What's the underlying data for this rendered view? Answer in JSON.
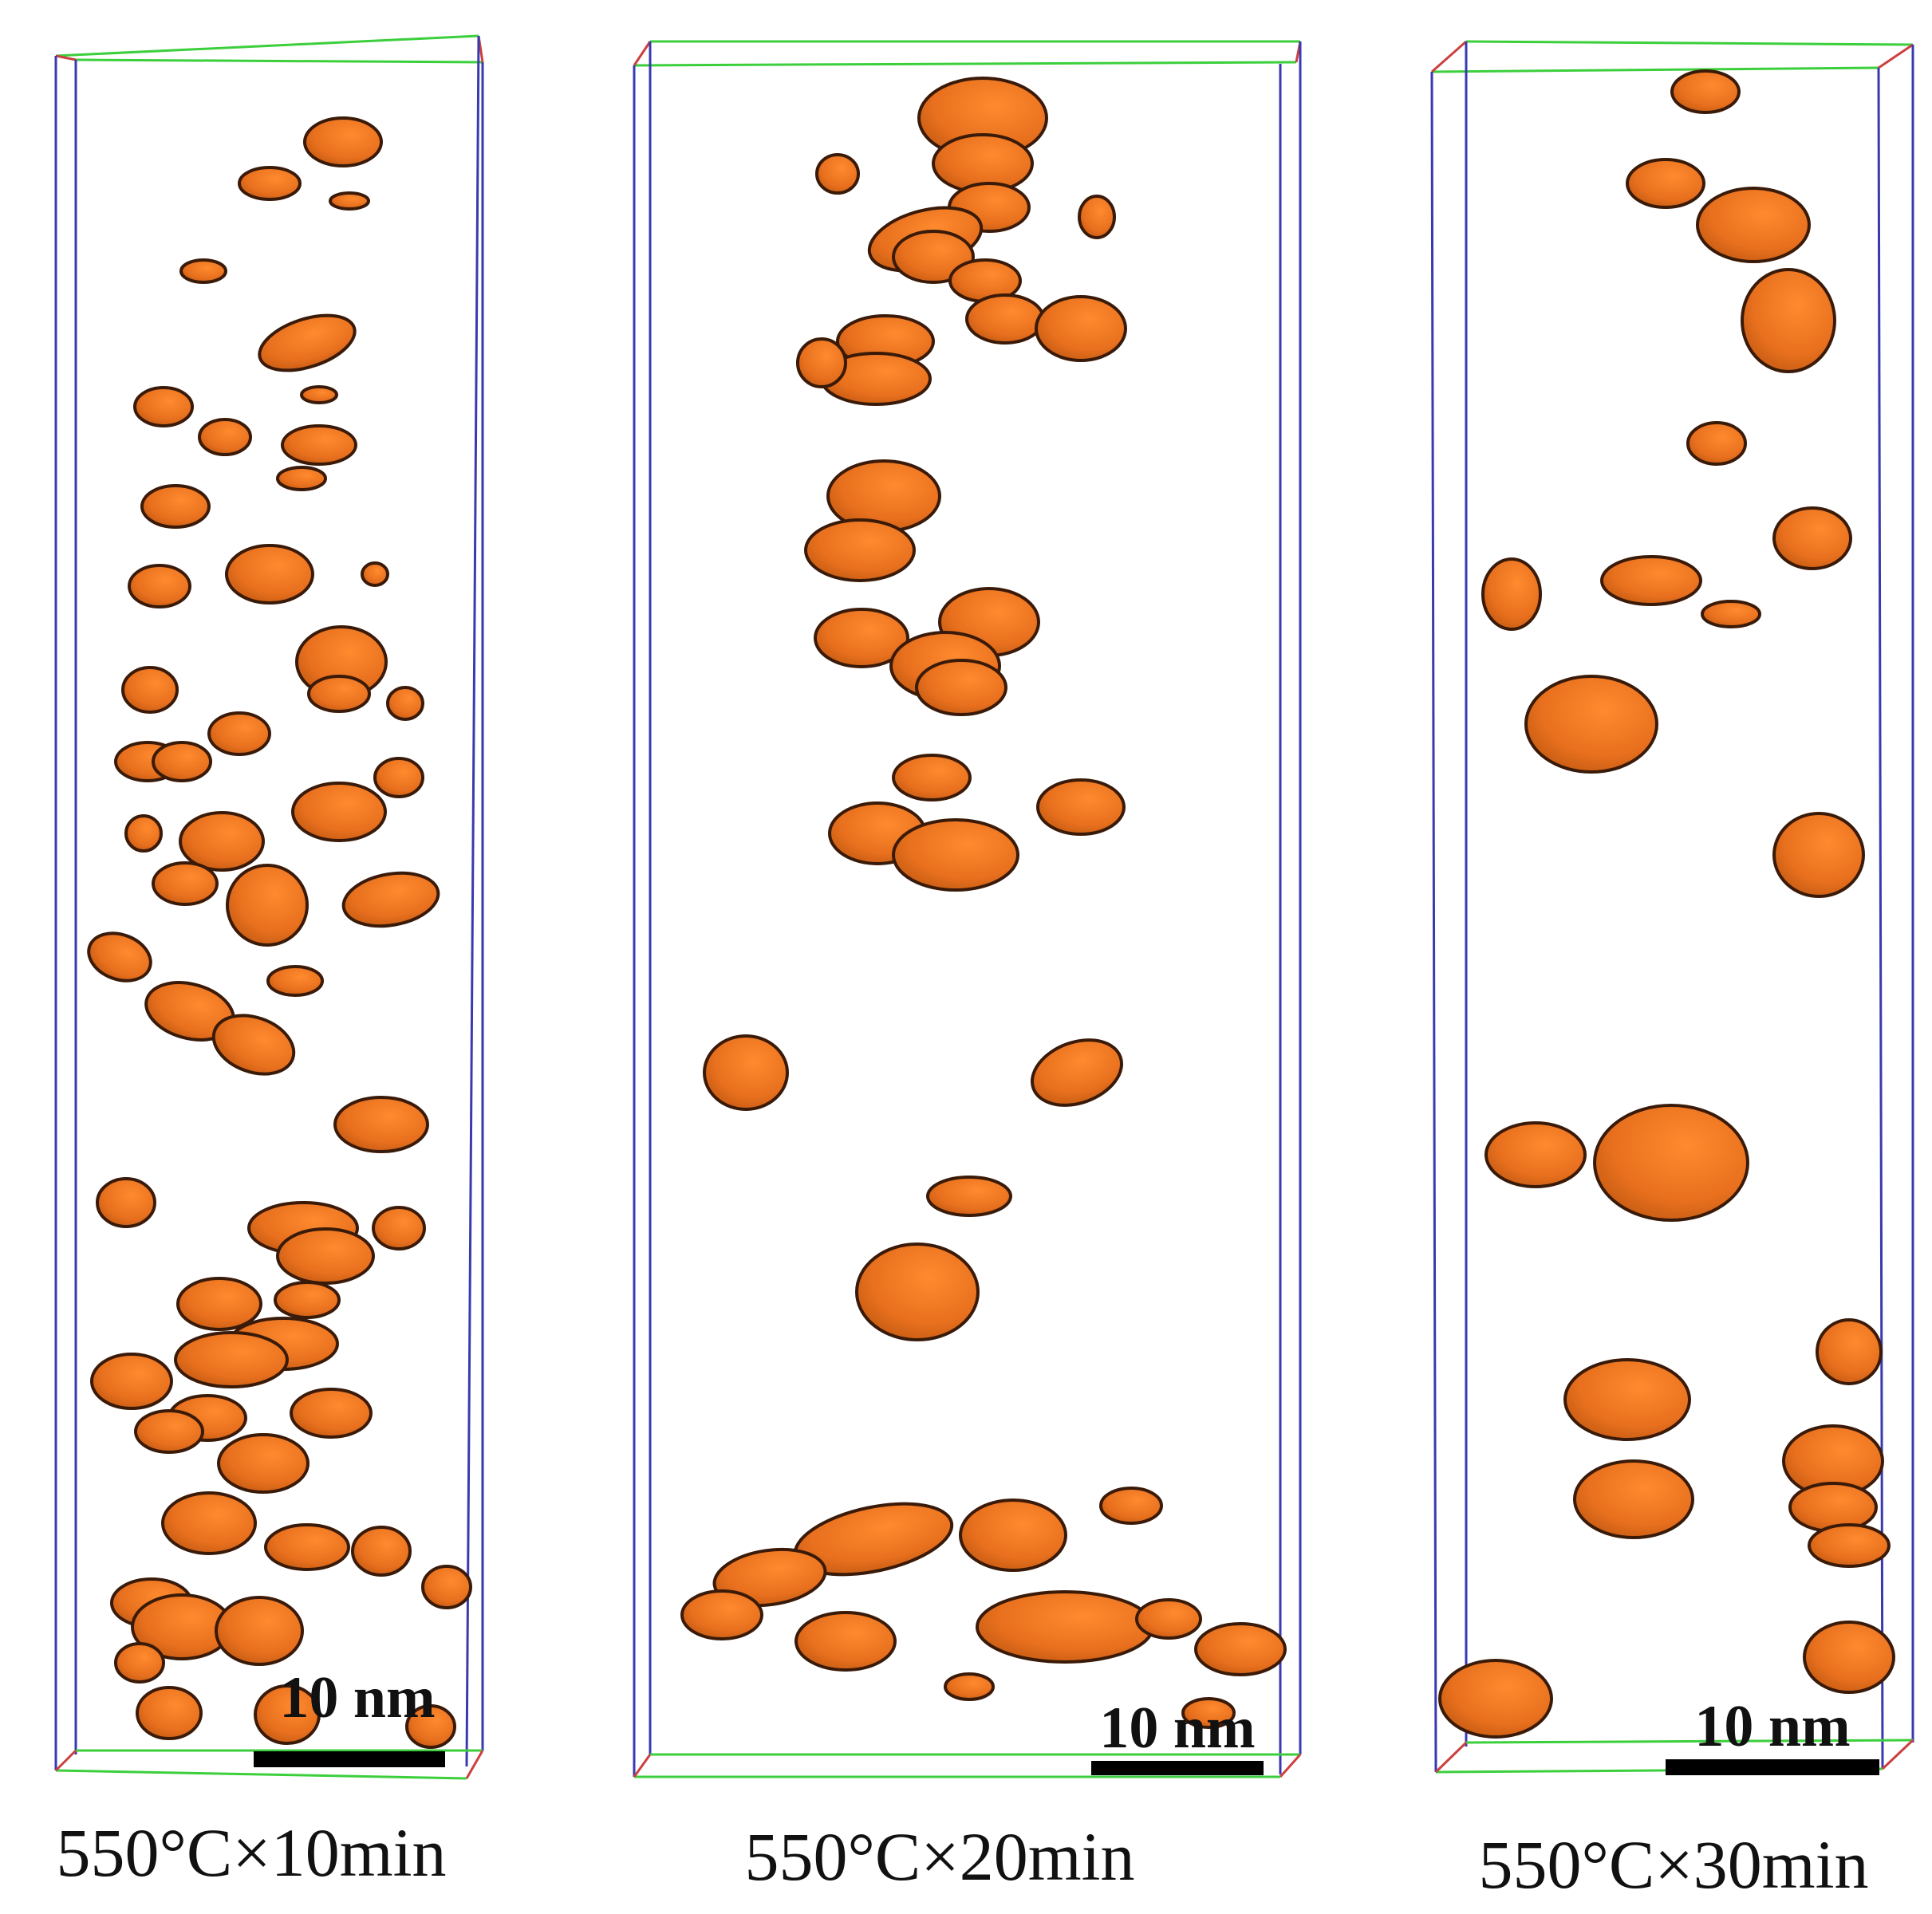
{
  "colors": {
    "precipitate_fill": "#e8701e",
    "precipitate_highlight": "#ff8a2e",
    "precipitate_edge": "#3a1a08",
    "box_green": "#3ccf3c",
    "box_blue": "#3a3ab0",
    "box_red": "#cc4040",
    "scale_bar": "#000000"
  },
  "panels": [
    {
      "caption": "550°C×10min",
      "scale_bar_label": "10 nm"
    },
    {
      "caption": "550°C×20min",
      "scale_bar_label": "10 nm"
    },
    {
      "caption": "550°C×30min",
      "scale_bar_label": "10 nm"
    }
  ]
}
